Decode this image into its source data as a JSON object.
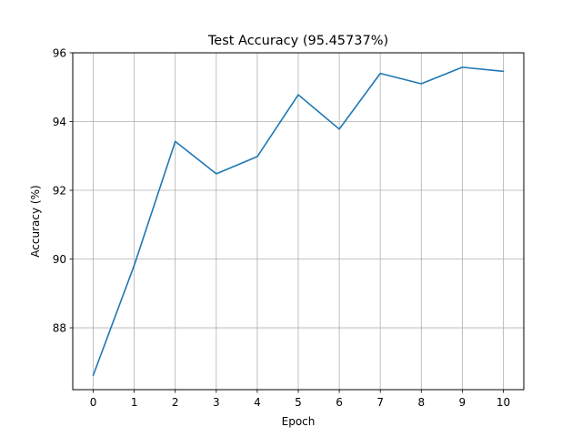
{
  "chart_data": {
    "type": "line",
    "title": "Test Accuracy (95.45737%)",
    "xlabel": "Epoch",
    "ylabel": "Accuracy (%)",
    "x": [
      0,
      1,
      2,
      3,
      4,
      5,
      6,
      7,
      8,
      9,
      10
    ],
    "series": [
      {
        "values": [
          86.62,
          89.82,
          93.42,
          92.48,
          92.98,
          94.78,
          93.78,
          95.4,
          95.1,
          95.58,
          95.46
        ]
      }
    ],
    "xlim": [
      -0.5,
      10.5
    ],
    "ylim": [
      86.2,
      96.0
    ],
    "xticks": [
      "0",
      "1",
      "2",
      "3",
      "4",
      "5",
      "6",
      "7",
      "8",
      "9",
      "10"
    ],
    "yticks": [
      "88",
      "90",
      "92",
      "94",
      "96"
    ],
    "ytick_values": [
      88,
      90,
      92,
      94,
      96
    ],
    "grid": true,
    "line_color": "#1f77b4",
    "grid_color": "#b0b0b0"
  }
}
